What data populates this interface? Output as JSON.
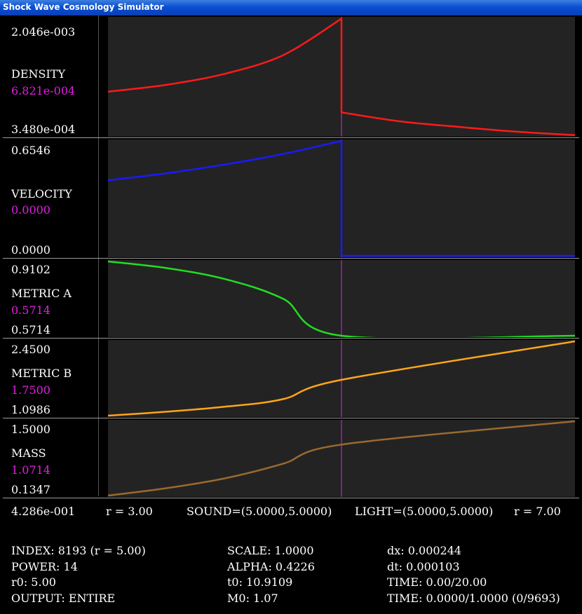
{
  "window": {
    "title": "Shock Wave Cosmology Simulator"
  },
  "colors": {
    "density": "#ff1a1a",
    "velocity": "#1a1aff",
    "metric_a": "#22dd22",
    "metric_b": "#ffa51a",
    "mass": "#9a6a30",
    "shock": "#e020e0"
  },
  "chart_data": [
    {
      "type": "line",
      "name": "DENSITY",
      "ymax_label": "2.046e-003",
      "ymin_label": "3.480e-004",
      "current_label": "6.821e-004",
      "x": [
        3.0,
        3.5,
        4.0,
        4.5,
        5.0,
        5.0,
        5.5,
        6.0,
        6.5,
        7.0
      ],
      "values": [
        0.00098,
        0.00108,
        0.00124,
        0.00151,
        0.00204,
        0.00068,
        0.00055,
        0.00047,
        0.0004,
        0.00035
      ],
      "ylim": [
        0.000348,
        0.002046
      ]
    },
    {
      "type": "line",
      "name": "VELOCITY",
      "ymax_label": "0.6546",
      "ymin_label": "0.0000",
      "current_label": "0.0000",
      "x": [
        3.0,
        3.5,
        4.0,
        4.5,
        5.0,
        5.0,
        7.0
      ],
      "values": [
        0.43,
        0.47,
        0.52,
        0.58,
        0.6546,
        0.0,
        0.0
      ],
      "ylim": [
        0.0,
        0.6546
      ]
    },
    {
      "type": "line",
      "name": "METRIC A",
      "ymax_label": "0.9102",
      "ymin_label": "0.5714",
      "current_label": "0.5714",
      "x": [
        3.0,
        3.5,
        4.0,
        4.5,
        5.0,
        7.0
      ],
      "values": [
        0.9102,
        0.88,
        0.83,
        0.74,
        0.5714,
        0.5714
      ],
      "ylim": [
        0.5714,
        0.9102
      ]
    },
    {
      "type": "line",
      "name": "METRIC B",
      "ymax_label": "2.4500",
      "ymin_label": "1.0986",
      "current_label": "1.7500",
      "x": [
        3.0,
        3.5,
        4.0,
        4.5,
        5.0,
        7.0
      ],
      "values": [
        1.0986,
        1.17,
        1.26,
        1.4,
        1.75,
        2.45
      ],
      "ylim": [
        1.0986,
        2.45
      ]
    },
    {
      "type": "line",
      "name": "MASS",
      "ymax_label": "1.5000",
      "ymin_label": "0.1347",
      "current_label": "1.0714",
      "x": [
        3.0,
        3.5,
        4.0,
        4.5,
        5.0,
        7.0
      ],
      "values": [
        0.1347,
        0.27,
        0.45,
        0.72,
        1.0714,
        1.5
      ],
      "ylim": [
        0.1347,
        1.5
      ]
    }
  ],
  "footer": {
    "scale_value": "4.286e-001",
    "r_left": "r = 3.00",
    "sound": "SOUND=(5.0000,5.0000)",
    "light": "LIGHT=(5.0000,5.0000)",
    "r_right": "r = 7.00"
  },
  "stats": {
    "index": "INDEX: 8193 (r = 5.00)",
    "power": "POWER: 14",
    "r0": "r0: 5.00",
    "output": "OUTPUT: ENTIRE",
    "scale": "SCALE: 1.0000",
    "alpha": "ALPHA: 0.4226",
    "t0": "t0: 10.9109",
    "m0": "M0: 1.07",
    "dx": "dx: 0.000244",
    "dt": "dt: 0.000103",
    "time": "TIME: 0.00/20.00",
    "time2": "TIME: 0.0000/1.0000 (0/9693)"
  }
}
